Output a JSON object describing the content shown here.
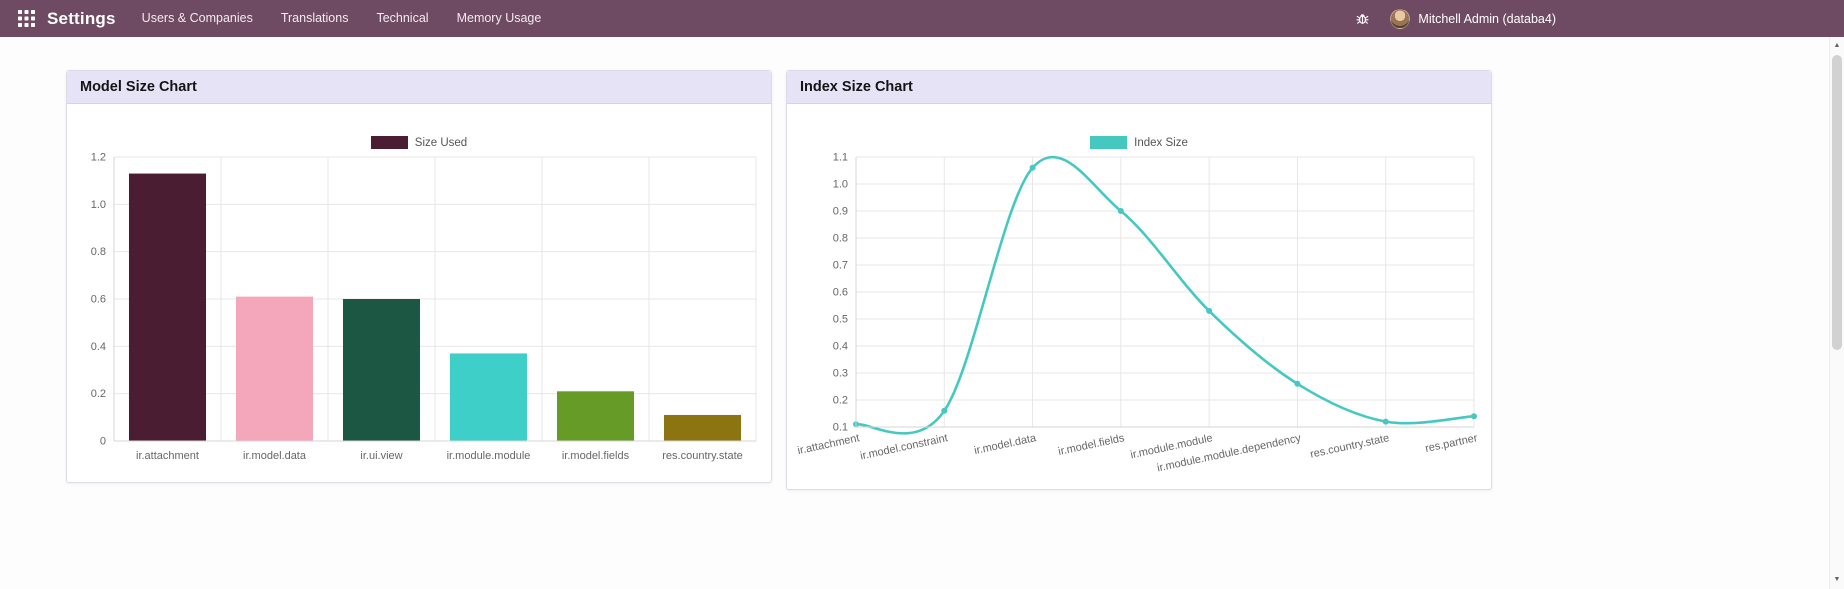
{
  "header": {
    "app_title": "Settings",
    "menu_items": [
      "Users & Companies",
      "Translations",
      "Technical",
      "Memory Usage"
    ],
    "user_name": "Mitchell Admin (databa4)",
    "bar_color": "#6e4a63"
  },
  "chart_data": [
    {
      "type": "bar",
      "title": "Model Size Chart",
      "legend": "Size Used",
      "color": "#4a1d32",
      "categories": [
        "ir.attachment",
        "ir.model.data",
        "ir.ui.view",
        "ir.module.module",
        "ir.model.fields",
        "res.country.state"
      ],
      "values": [
        1.13,
        0.61,
        0.6,
        0.37,
        0.21,
        0.11
      ],
      "bar_colors": [
        "#4a1d32",
        "#f4a6ba",
        "#1b5742",
        "#3ed0c8",
        "#669b28",
        "#8c7410"
      ],
      "ylim": [
        0,
        1.2
      ],
      "ytick_step": 0.2,
      "grid": true,
      "legend_position": "top"
    },
    {
      "type": "line",
      "title": "Index Size Chart",
      "legend": "Index Size",
      "color": "#45c8c0",
      "categories": [
        "ir.attachment",
        "ir.model.constraint",
        "ir.model.data",
        "ir.model.fields",
        "ir.module.module",
        "ir.module.module.dependency",
        "res.country.state",
        "res.partner"
      ],
      "values": [
        0.11,
        0.16,
        1.06,
        0.9,
        0.53,
        0.26,
        0.12,
        0.14
      ],
      "ylim": [
        0.1,
        1.1
      ],
      "ytick_step": 0.1,
      "grid": true,
      "legend_position": "top",
      "x_label_rotation": -12
    }
  ]
}
